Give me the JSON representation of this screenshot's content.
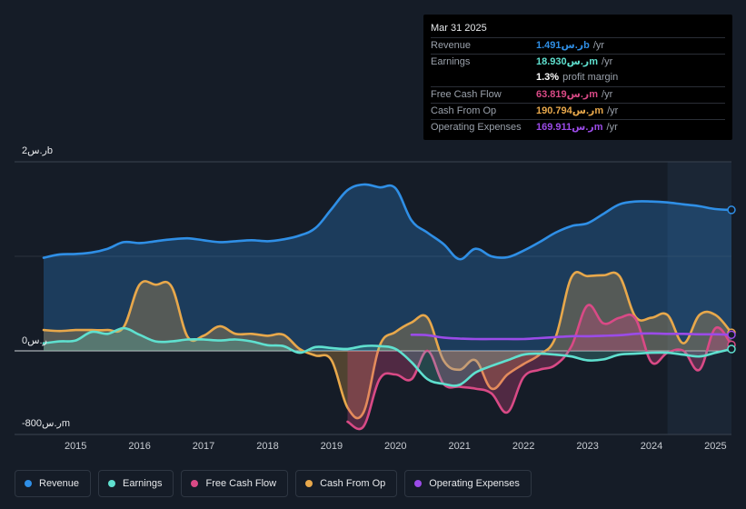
{
  "tooltip": {
    "date": "Mar 31 2025",
    "rows": [
      {
        "label": "Revenue",
        "value": "ر.س1.491b",
        "unit": "/yr",
        "color": "#2f8fe6"
      },
      {
        "label": "Earnings",
        "value": "ر.س18.930m",
        "unit": "/yr",
        "color": "#5fe0cf"
      },
      {
        "label": "",
        "value": "1.3%",
        "unit": "profit margin",
        "color": "#ffffff"
      },
      {
        "label": "Free Cash Flow",
        "value": "ر.س63.819m",
        "unit": "/yr",
        "color": "#d94a86"
      },
      {
        "label": "Cash From Op",
        "value": "ر.س190.794m",
        "unit": "/yr",
        "color": "#e8a84b"
      },
      {
        "label": "Operating Expenses",
        "value": "ر.س169.911m",
        "unit": "/yr",
        "color": "#9b4be8"
      }
    ]
  },
  "legend": [
    {
      "label": "Revenue",
      "color": "#2f8fe6"
    },
    {
      "label": "Earnings",
      "color": "#5fe0cf"
    },
    {
      "label": "Free Cash Flow",
      "color": "#d94a86"
    },
    {
      "label": "Cash From Op",
      "color": "#e8a84b"
    },
    {
      "label": "Operating Expenses",
      "color": "#9b4be8"
    }
  ],
  "chart_data": {
    "type": "area",
    "title": "",
    "xlabel": "",
    "ylabel": "",
    "ylim": [
      -800,
      2000
    ],
    "y_unit": "ر.س m",
    "y_tick_labels": {
      "top": "ر.س2b",
      "zero": "ر.س0",
      "bottom": "-ر.س800m"
    },
    "x_tick_labels": [
      "2015",
      "2016",
      "2017",
      "2018",
      "2019",
      "2020",
      "2021",
      "2022",
      "2023",
      "2024",
      "2025"
    ],
    "x_range": [
      2014.5,
      2025.25
    ],
    "forecast_shade_from": 2024.25,
    "series": [
      {
        "name": "Revenue",
        "color": "#2f8fe6",
        "x": [
          2014.5,
          2014.75,
          2015.0,
          2015.25,
          2015.5,
          2015.75,
          2016.0,
          2016.25,
          2016.5,
          2016.75,
          2017.0,
          2017.25,
          2017.5,
          2017.75,
          2018.0,
          2018.25,
          2018.5,
          2018.75,
          2019.0,
          2019.25,
          2019.5,
          2019.75,
          2020.0,
          2020.25,
          2020.5,
          2020.75,
          2021.0,
          2021.25,
          2021.5,
          2021.75,
          2022.0,
          2022.25,
          2022.5,
          2022.75,
          2023.0,
          2023.25,
          2023.5,
          2023.75,
          2024.0,
          2024.25,
          2024.5,
          2024.75,
          2025.0,
          2025.25
        ],
        "values": [
          985,
          1020,
          1025,
          1040,
          1080,
          1150,
          1140,
          1160,
          1180,
          1190,
          1170,
          1150,
          1160,
          1170,
          1160,
          1180,
          1220,
          1300,
          1500,
          1700,
          1760,
          1730,
          1720,
          1380,
          1250,
          1130,
          970,
          1080,
          1000,
          990,
          1060,
          1150,
          1250,
          1320,
          1350,
          1450,
          1550,
          1580,
          1580,
          1570,
          1550,
          1530,
          1500,
          1491
        ]
      },
      {
        "name": "Earnings",
        "color": "#5fe0cf",
        "x": [
          2014.5,
          2014.75,
          2015.0,
          2015.25,
          2015.5,
          2015.75,
          2016.0,
          2016.25,
          2016.5,
          2016.75,
          2017.0,
          2017.25,
          2017.5,
          2017.75,
          2018.0,
          2018.25,
          2018.5,
          2018.75,
          2019.0,
          2019.25,
          2019.5,
          2019.75,
          2020.0,
          2020.25,
          2020.5,
          2020.75,
          2021.0,
          2021.25,
          2021.5,
          2021.75,
          2022.0,
          2022.25,
          2022.5,
          2022.75,
          2023.0,
          2023.25,
          2023.5,
          2023.75,
          2024.0,
          2024.25,
          2024.5,
          2024.75,
          2025.0,
          2025.25
        ],
        "values": [
          80,
          100,
          110,
          200,
          180,
          240,
          170,
          100,
          100,
          120,
          120,
          110,
          120,
          100,
          60,
          50,
          -20,
          40,
          30,
          20,
          50,
          50,
          20,
          -120,
          -300,
          -350,
          -360,
          -230,
          -160,
          -100,
          -40,
          -30,
          -40,
          -60,
          -100,
          -90,
          -40,
          -30,
          -20,
          -20,
          -40,
          -60,
          -20,
          19
        ]
      },
      {
        "name": "Free Cash Flow",
        "color": "#d94a86",
        "x": [
          2019.25,
          2019.5,
          2019.75,
          2020.0,
          2020.25,
          2020.5,
          2020.75,
          2021.0,
          2021.25,
          2021.5,
          2021.75,
          2022.0,
          2022.25,
          2022.5,
          2022.75,
          2023.0,
          2023.25,
          2023.5,
          2023.75,
          2024.0,
          2024.25,
          2024.5,
          2024.75,
          2025.0,
          2025.25
        ],
        "values": [
          -750,
          -800,
          -300,
          -250,
          -300,
          0,
          -350,
          -380,
          -400,
          -450,
          -650,
          -280,
          -200,
          -150,
          50,
          480,
          290,
          350,
          340,
          -120,
          -20,
          0,
          -200,
          240,
          64
        ]
      },
      {
        "name": "Cash From Op",
        "color": "#e8a84b",
        "x": [
          2014.5,
          2014.75,
          2015.0,
          2015.25,
          2015.5,
          2015.75,
          2016.0,
          2016.25,
          2016.5,
          2016.75,
          2017.0,
          2017.25,
          2017.5,
          2017.75,
          2018.0,
          2018.25,
          2018.5,
          2018.75,
          2019.0,
          2019.25,
          2019.5,
          2019.75,
          2020.0,
          2020.25,
          2020.5,
          2020.75,
          2021.0,
          2021.25,
          2021.5,
          2021.75,
          2022.0,
          2022.25,
          2022.5,
          2022.75,
          2023.0,
          2023.25,
          2023.5,
          2023.75,
          2024.0,
          2024.25,
          2024.5,
          2024.75,
          2025.0,
          2025.25
        ],
        "values": [
          220,
          210,
          220,
          220,
          220,
          250,
          700,
          700,
          680,
          150,
          160,
          260,
          180,
          180,
          160,
          170,
          20,
          -50,
          -100,
          -600,
          -650,
          50,
          200,
          300,
          350,
          -100,
          -200,
          -100,
          -400,
          -250,
          -140,
          -40,
          140,
          780,
          790,
          800,
          790,
          360,
          350,
          380,
          80,
          380,
          380,
          191
        ]
      },
      {
        "name": "Operating Expenses",
        "color": "#9b4be8",
        "x": [
          2020.25,
          2020.5,
          2020.75,
          2021.0,
          2021.25,
          2021.5,
          2021.75,
          2022.0,
          2022.25,
          2022.5,
          2022.75,
          2023.0,
          2023.25,
          2023.5,
          2023.75,
          2024.0,
          2024.25,
          2024.5,
          2024.75,
          2025.0,
          2025.25
        ],
        "values": [
          170,
          165,
          140,
          130,
          125,
          125,
          125,
          125,
          135,
          145,
          155,
          155,
          160,
          165,
          180,
          185,
          180,
          180,
          175,
          175,
          170
        ]
      }
    ]
  }
}
